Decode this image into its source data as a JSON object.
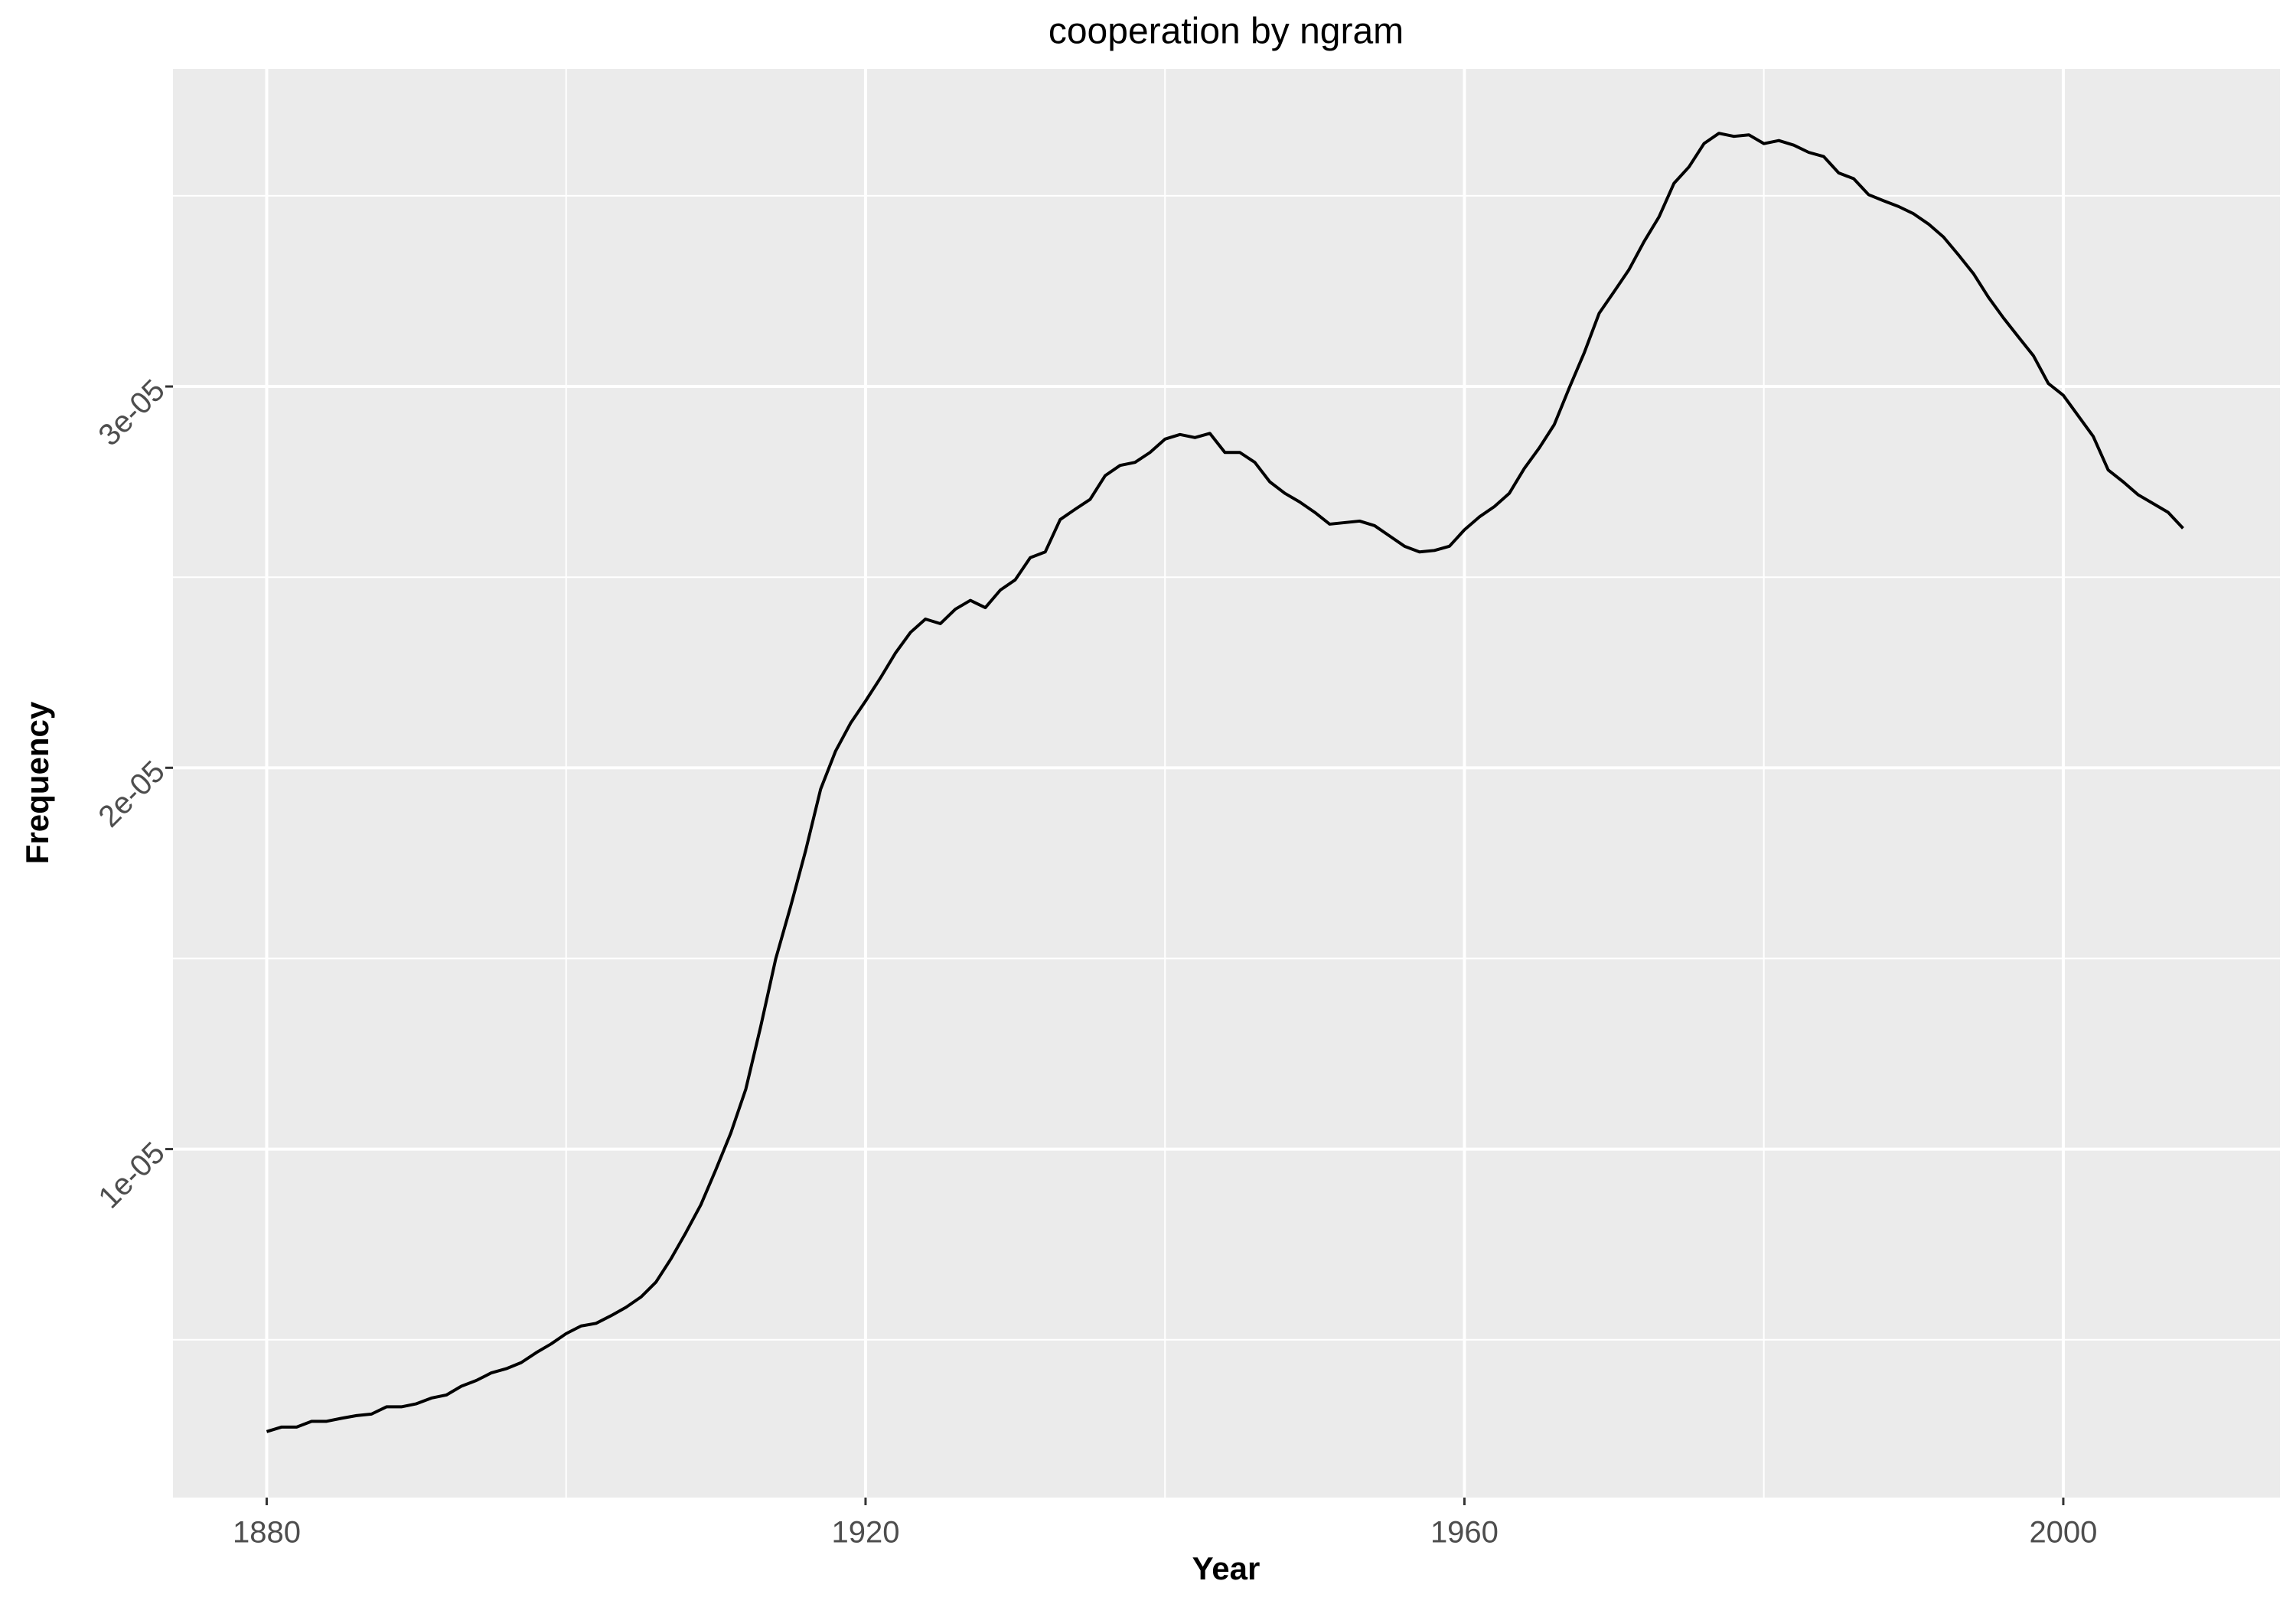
{
  "chart_data": {
    "type": "line",
    "title": "cooperation by ngram",
    "x_label": "Year",
    "y_label": "Frequency",
    "x": [
      1880,
      1881,
      1882,
      1883,
      1884,
      1885,
      1886,
      1887,
      1888,
      1889,
      1890,
      1891,
      1892,
      1893,
      1894,
      1895,
      1896,
      1897,
      1898,
      1899,
      1900,
      1901,
      1902,
      1903,
      1904,
      1905,
      1906,
      1907,
      1908,
      1909,
      1910,
      1911,
      1912,
      1913,
      1914,
      1915,
      1916,
      1917,
      1918,
      1919,
      1920,
      1921,
      1922,
      1923,
      1924,
      1925,
      1926,
      1927,
      1928,
      1929,
      1930,
      1931,
      1932,
      1933,
      1934,
      1935,
      1936,
      1937,
      1938,
      1939,
      1940,
      1941,
      1942,
      1943,
      1944,
      1945,
      1946,
      1947,
      1948,
      1949,
      1950,
      1951,
      1952,
      1953,
      1954,
      1955,
      1956,
      1957,
      1958,
      1959,
      1960,
      1961,
      1962,
      1963,
      1964,
      1965,
      1966,
      1967,
      1968,
      1969,
      1970,
      1971,
      1972,
      1973,
      1974,
      1975,
      1976,
      1977,
      1978,
      1979,
      1980,
      1981,
      1982,
      1983,
      1984,
      1985,
      1986,
      1987,
      1988,
      1989,
      1990,
      1991,
      1992,
      1993,
      1994,
      1995,
      1996,
      1997,
      1998,
      1999,
      2000,
      2001,
      2002,
      2003,
      2004,
      2005,
      2006,
      2007,
      2008
    ],
    "series": [
      {
        "name": "cooperation",
        "color": "#000000",
        "values": [
          2.59e-06,
          2.71e-06,
          2.71e-06,
          2.86e-06,
          2.86e-06,
          2.94e-06,
          3.01e-06,
          3.05e-06,
          3.24e-06,
          3.24e-06,
          3.32e-06,
          3.47e-06,
          3.55e-06,
          3.78e-06,
          3.93e-06,
          4.13e-06,
          4.24e-06,
          4.4e-06,
          4.66e-06,
          4.89e-06,
          5.16e-06,
          5.36e-06,
          5.43e-06,
          5.63e-06,
          5.85e-06,
          6.12e-06,
          6.51e-06,
          7.12e-06,
          7.81e-06,
          8.54e-06,
          9.46e-06,
          1.042e-05,
          1.157e-05,
          1.322e-05,
          1.499e-05,
          1.637e-05,
          1.783e-05,
          1.944e-05,
          2.044e-05,
          2.117e-05,
          2.175e-05,
          2.236e-05,
          2.301e-05,
          2.355e-05,
          2.39e-05,
          2.378e-05,
          2.416e-05,
          2.439e-05,
          2.42e-05,
          2.466e-05,
          2.493e-05,
          2.551e-05,
          2.566e-05,
          2.651e-05,
          2.678e-05,
          2.704e-05,
          2.766e-05,
          2.793e-05,
          2.801e-05,
          2.827e-05,
          2.862e-05,
          2.874e-05,
          2.866e-05,
          2.877e-05,
          2.827e-05,
          2.827e-05,
          2.801e-05,
          2.75e-05,
          2.72e-05,
          2.697e-05,
          2.67e-05,
          2.639e-05,
          2.643e-05,
          2.647e-05,
          2.635e-05,
          2.608e-05,
          2.581e-05,
          2.566e-05,
          2.57e-05,
          2.581e-05,
          2.624e-05,
          2.658e-05,
          2.685e-05,
          2.72e-05,
          2.785e-05,
          2.839e-05,
          2.9e-05,
          2.996e-05,
          3.088e-05,
          3.192e-05,
          3.249e-05,
          3.307e-05,
          3.38e-05,
          3.445e-05,
          3.533e-05,
          3.576e-05,
          3.637e-05,
          3.664e-05,
          3.656e-05,
          3.66e-05,
          3.637e-05,
          3.645e-05,
          3.633e-05,
          3.614e-05,
          3.603e-05,
          3.56e-05,
          3.545e-05,
          3.503e-05,
          3.487e-05,
          3.472e-05,
          3.453e-05,
          3.426e-05,
          3.392e-05,
          3.345e-05,
          3.296e-05,
          3.234e-05,
          3.18e-05,
          3.13e-05,
          3.081e-05,
          3.008e-05,
          2.977e-05,
          2.923e-05,
          2.869e-05,
          2.781e-05,
          2.75e-05,
          2.716e-05,
          2.693e-05,
          2.67e-05,
          2.628e-05
        ]
      }
    ],
    "xlim": [
      1873.74,
      2014.47
    ],
    "xticks": [
      1880,
      1920,
      1960,
      2000
    ],
    "xminor": [
      1900,
      1940,
      1980
    ],
    "ylim": [
      8.6e-07,
      3.833e-05
    ],
    "yticks": [
      {
        "value": 1e-05,
        "label": "1e-05"
      },
      {
        "value": 2e-05,
        "label": "2e-05"
      },
      {
        "value": 3e-05,
        "label": "3e-05"
      }
    ],
    "yminor": [
      5e-06,
      1.5e-05,
      2.5e-05,
      3.5e-05
    ],
    "grid": true
  }
}
